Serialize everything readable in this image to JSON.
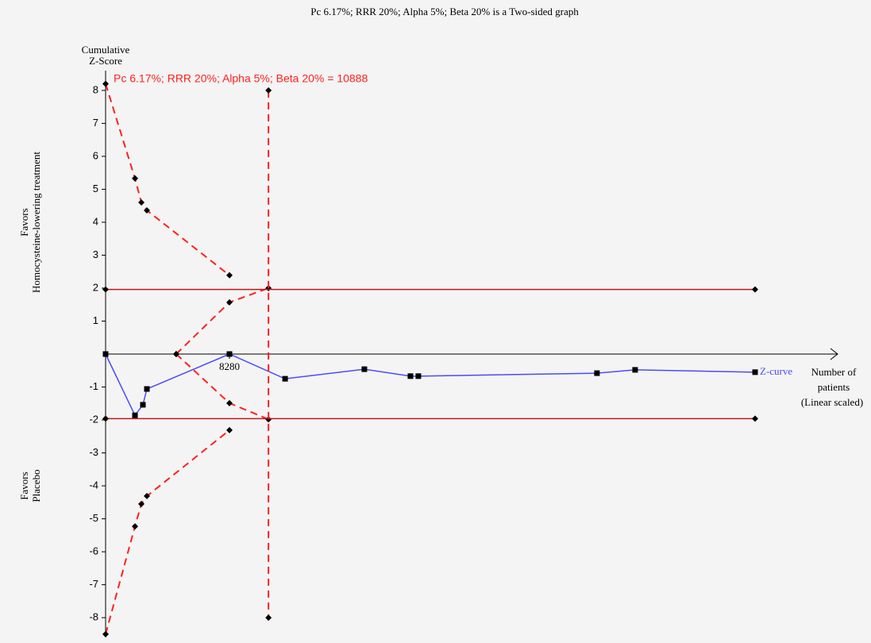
{
  "chart_data": {
    "type": "line",
    "title": "Pc 6.17%; RRR 20%; Alpha 5%; Beta 20% is a Two-sided graph",
    "ylabel": [
      "Cumulative",
      "Z-Score"
    ],
    "xlabel": [
      "Number of",
      "patients",
      "(Linear scaled)"
    ],
    "upper_side_label": [
      "Favors",
      "Homocysteine-lowering treatment"
    ],
    "lower_side_label": [
      "Favors",
      "Placebo"
    ],
    "annotation": "Pc 6.17%; RRR 20%; Alpha 5%; Beta 20% = 10888",
    "annotation_color": "#ff2020",
    "xlim": [
      0,
      48940
    ],
    "xticks": [
      8280
    ],
    "ylim": [
      -8.6,
      8.6
    ],
    "yticks": [
      -8,
      -7,
      -6,
      -5,
      -4,
      -3,
      -2,
      -1,
      1,
      2,
      3,
      4,
      5,
      6,
      7,
      8
    ],
    "series": [
      {
        "name": "Z-curve",
        "color": "#4a4aff",
        "dash": false,
        "marker": "square",
        "x": [
          0,
          1964,
          2495,
          2760,
          8280,
          12000,
          17300,
          20380,
          20910,
          32850,
          35400,
          43420
        ],
        "values": [
          0,
          -1.86,
          -1.54,
          -1.06,
          0,
          -0.75,
          -0.46,
          -0.67,
          -0.67,
          -0.58,
          -0.48,
          -0.55
        ]
      },
      {
        "color": "#ff2020",
        "dash": true,
        "marker": "diamond",
        "x": [
          0,
          1964,
          2390,
          2760,
          8280
        ],
        "values": [
          8.2,
          5.33,
          4.6,
          4.36,
          2.39
        ]
      },
      {
        "color": "#ff2020",
        "dash": true,
        "marker": "diamond",
        "x": [
          0,
          1964,
          2390,
          2760,
          8280
        ],
        "values": [
          -8.5,
          -5.23,
          -4.55,
          -4.31,
          -2.31
        ]
      },
      {
        "color": "#ff2020",
        "dash": true,
        "marker": "diamond",
        "x": [
          4720,
          8280,
          10888
        ],
        "values": [
          0,
          1.57,
          2.0
        ]
      },
      {
        "color": "#ff2020",
        "dash": true,
        "marker": "diamond",
        "x": [
          4720,
          8280,
          10888
        ],
        "values": [
          0,
          -1.49,
          -1.98
        ]
      },
      {
        "color": "#ff2020",
        "dash": true,
        "marker": "diamond",
        "x": [
          10888,
          10888
        ],
        "values": [
          8,
          -8
        ]
      },
      {
        "color": "#c01818",
        "dash": false,
        "marker": "diamond",
        "x": [
          0,
          43420
        ],
        "values": [
          1.96,
          1.96
        ]
      },
      {
        "color": "#c01818",
        "dash": false,
        "marker": "diamond",
        "x": [
          0,
          43420
        ],
        "values": [
          -1.96,
          -1.96
        ]
      }
    ]
  }
}
